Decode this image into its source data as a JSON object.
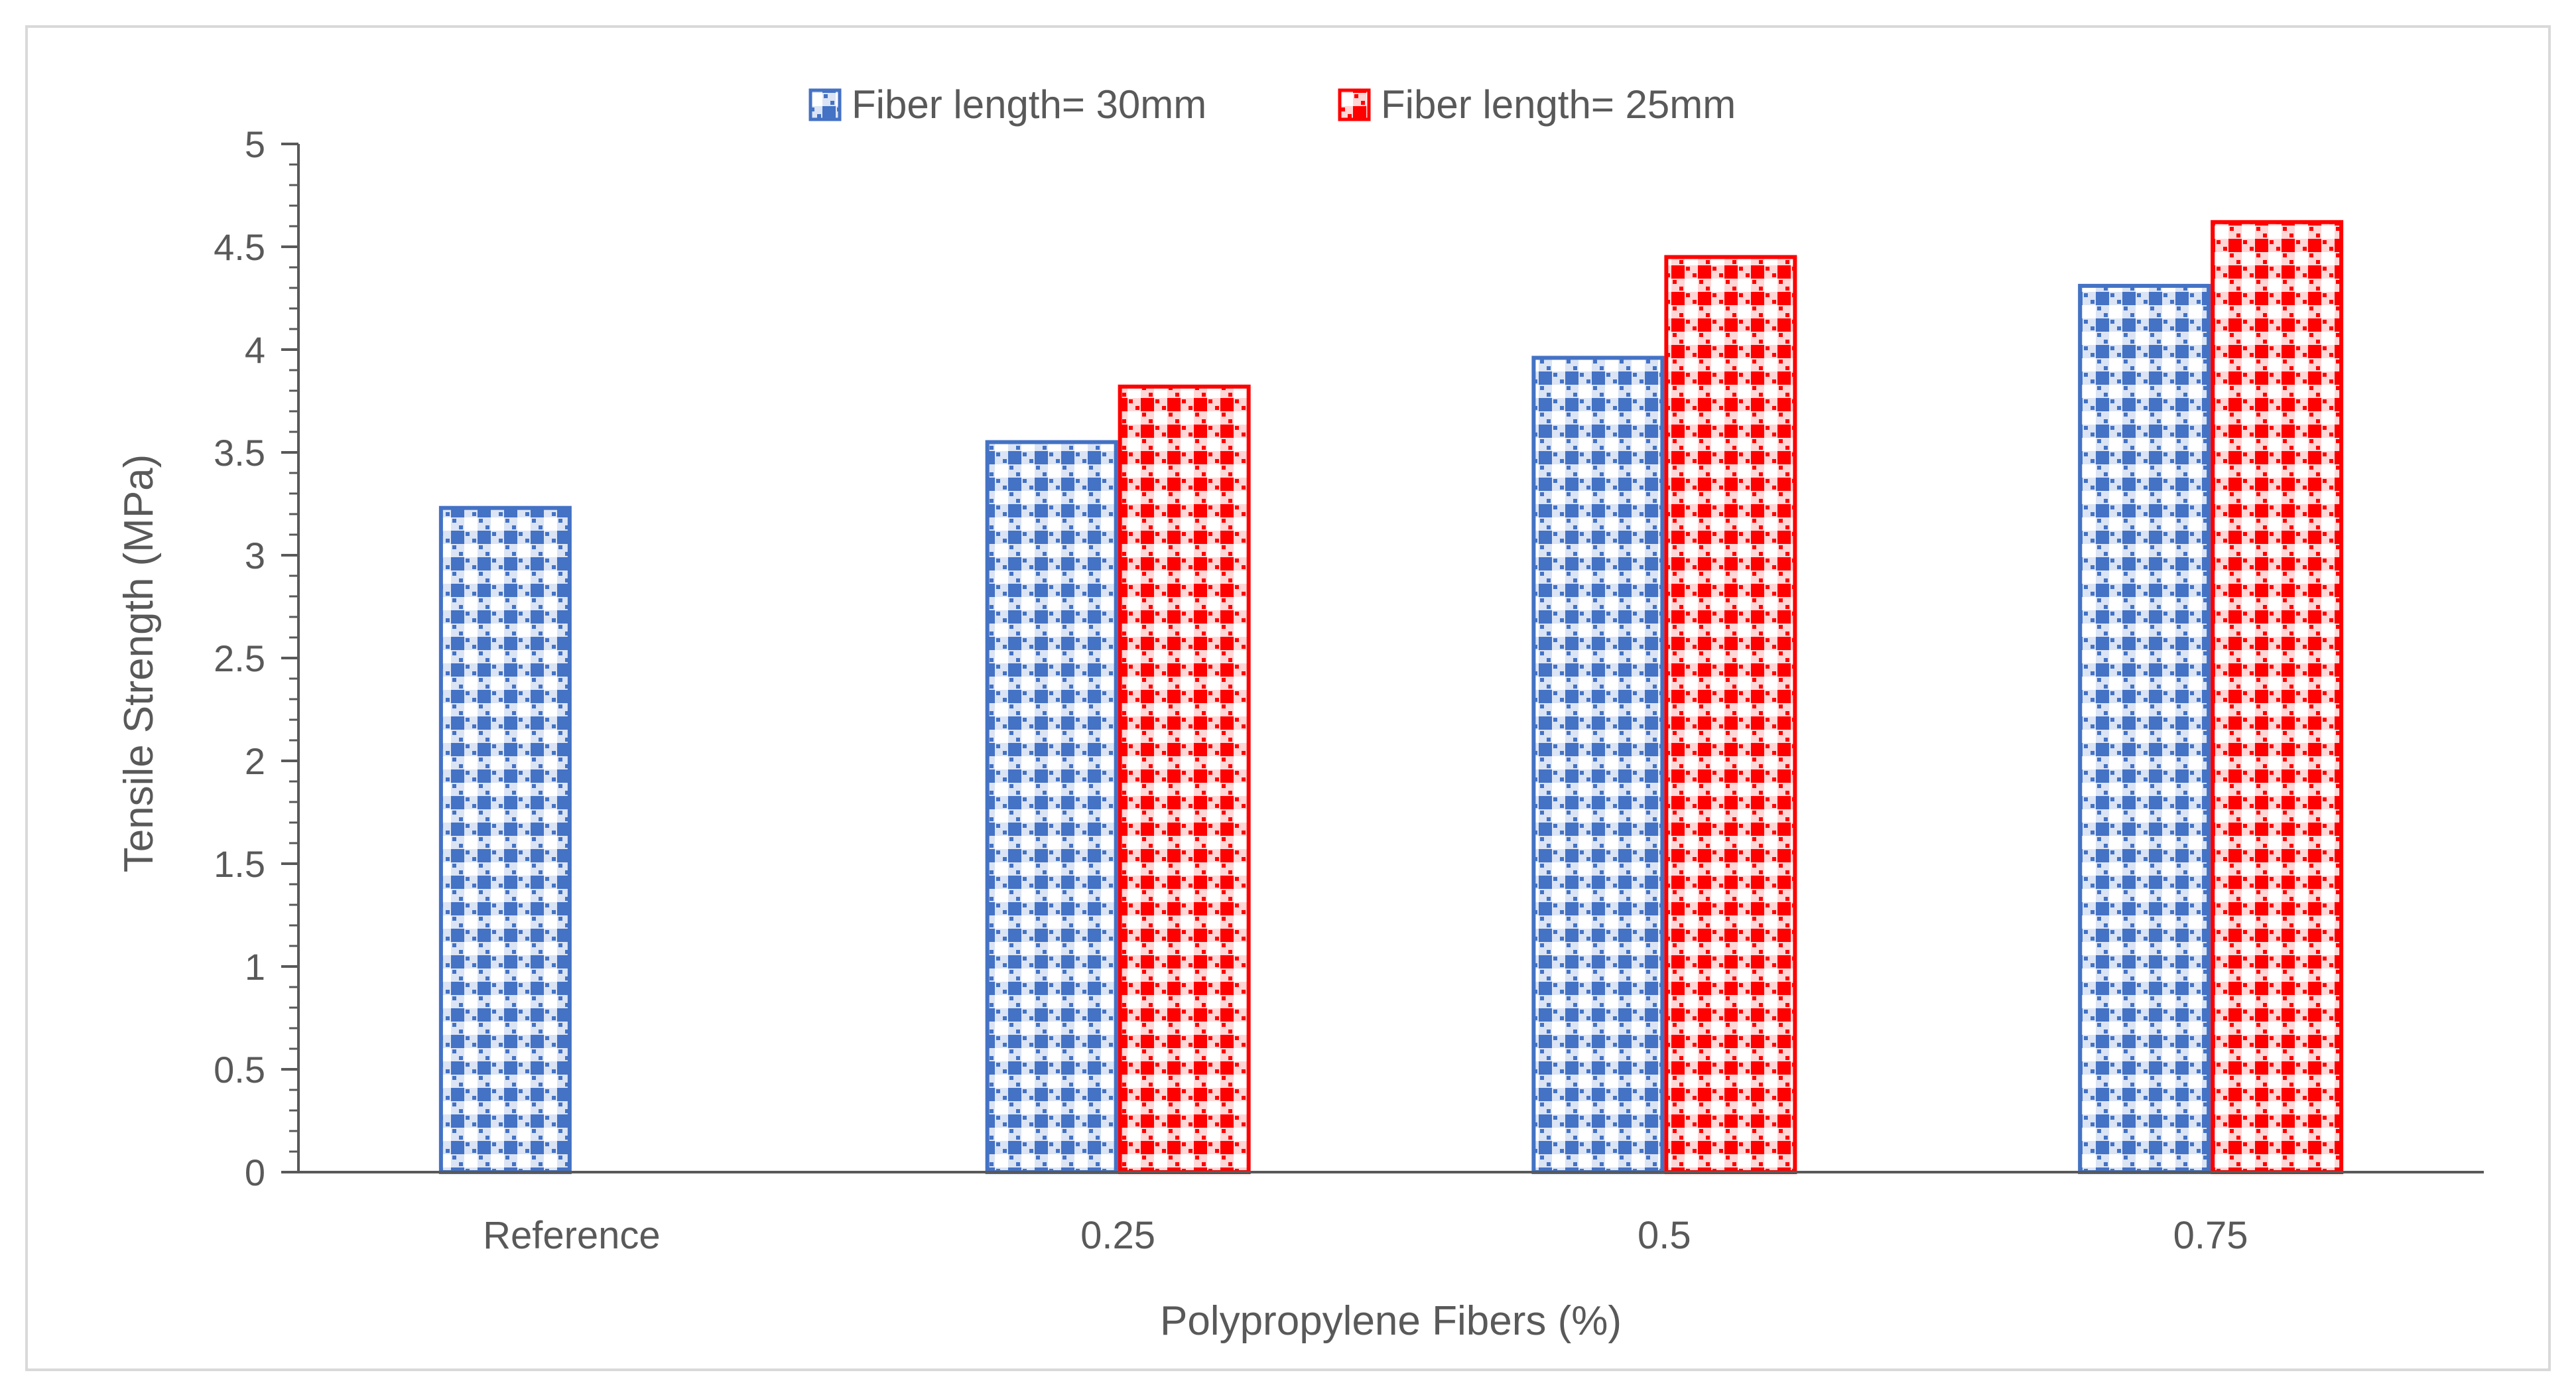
{
  "chart_data": {
    "type": "bar",
    "title": "",
    "xlabel": "Polypropylene Fibers (%)",
    "ylabel": "Tensile Strength (MPa)",
    "categories": [
      "Reference",
      "0.25",
      "0.5",
      "0.75"
    ],
    "series": [
      {
        "name": "Fiber length= 30mm",
        "color": "#4472C4",
        "values": [
          3.23,
          3.55,
          3.96,
          4.31
        ]
      },
      {
        "name": "Fiber length= 25mm",
        "color": "#FF0000",
        "values": [
          null,
          3.82,
          4.45,
          4.62
        ]
      }
    ],
    "ylim": [
      0,
      5
    ],
    "yticks": [
      "0",
      "0.5",
      "1",
      "1.5",
      "2",
      "2.5",
      "3",
      "3.5",
      "4",
      "4.5",
      "5"
    ],
    "ytick_values": [
      0,
      0.5,
      1,
      1.5,
      2,
      2.5,
      3,
      3.5,
      4,
      4.5,
      5
    ],
    "minor_tick_step": 0.1,
    "legend_position": "top-center",
    "grid": false
  }
}
